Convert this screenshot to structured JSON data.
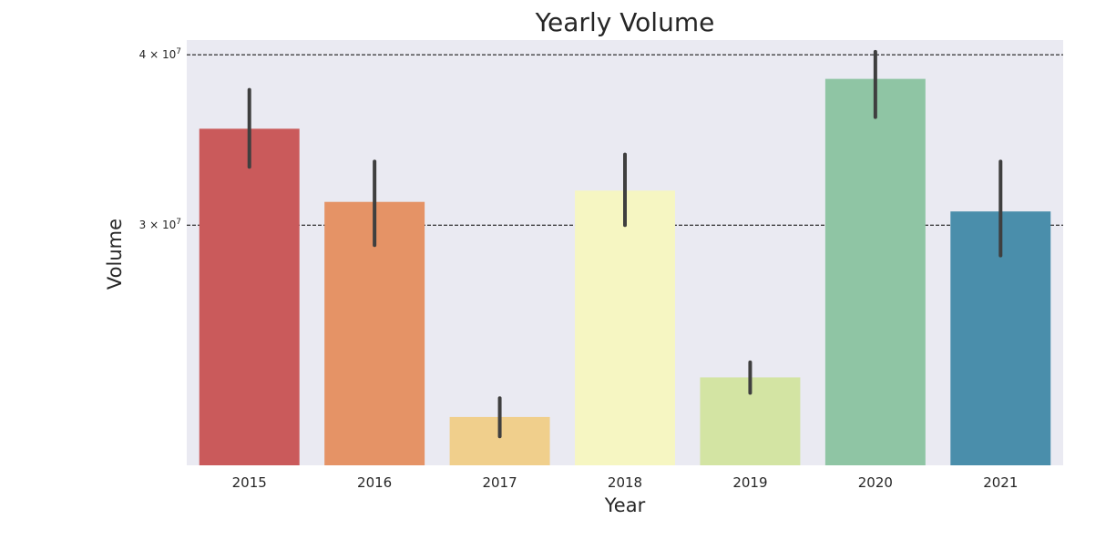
{
  "chart_data": {
    "type": "bar",
    "title": "Yearly Volume",
    "xlabel": "Year",
    "ylabel": "Volume",
    "yscale": "log",
    "ylim": [
      20000000,
      41000000
    ],
    "grid": "horizontal-dashed",
    "categories": [
      "2015",
      "2016",
      "2017",
      "2018",
      "2019",
      "2020",
      "2021"
    ],
    "values": [
      35300000,
      31200000,
      21700000,
      31800000,
      23200000,
      38400000,
      30700000
    ],
    "error_low": [
      33100000,
      29000000,
      21000000,
      30000000,
      22600000,
      36000000,
      28500000
    ],
    "error_high": [
      37700000,
      33400000,
      22400000,
      33800000,
      23800000,
      40200000,
      33400000
    ],
    "colors": [
      "#ca5a5b",
      "#e59366",
      "#f0cf8c",
      "#f6f6c2",
      "#d3e4a3",
      "#8fc5a4",
      "#4a8eab"
    ],
    "errorbar_color": "#3f3f3f",
    "yticks": [
      {
        "value": 30000000,
        "coef": "3",
        "base": "10",
        "exp": "7"
      },
      {
        "value": 40000000,
        "coef": "4",
        "base": "10",
        "exp": "7"
      }
    ],
    "yticks_times": "×"
  }
}
